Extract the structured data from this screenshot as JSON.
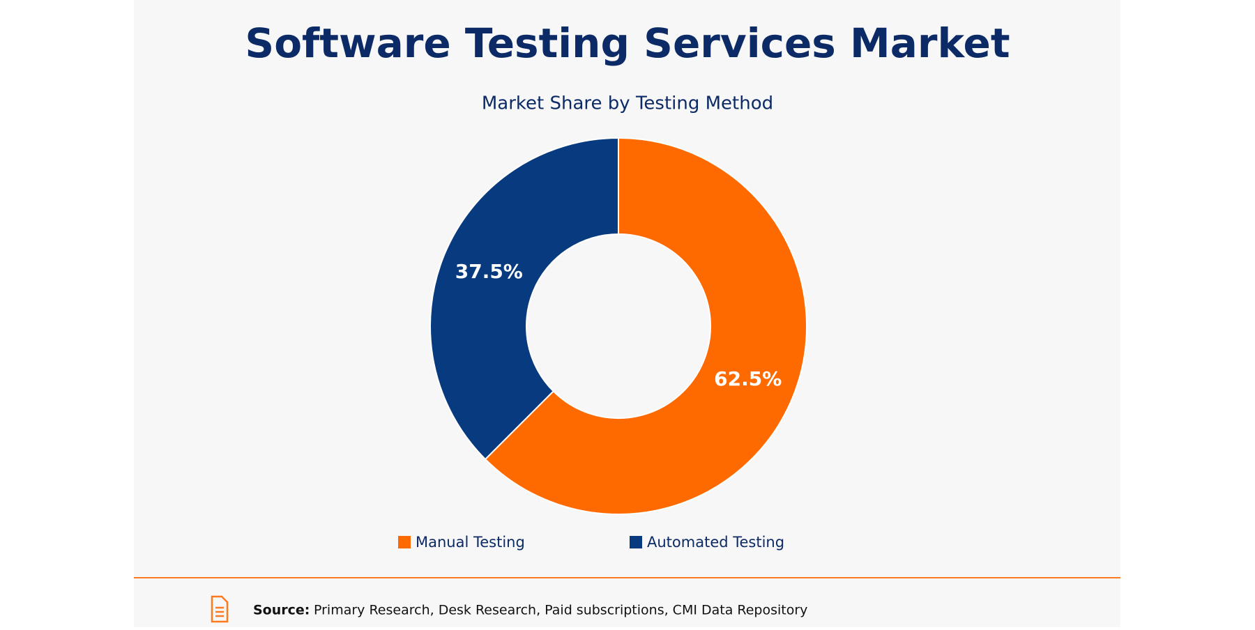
{
  "chart_data": {
    "type": "pie",
    "hole": true,
    "title": "Software Testing Services Market",
    "subtitle": "Market Share by Testing Method",
    "categories": [
      "Manual Testing",
      "Automated Testing"
    ],
    "values": [
      62.5,
      37.5
    ],
    "value_labels": [
      "62.5%",
      "37.5%"
    ],
    "colors": [
      "#ff6a00",
      "#073a7e"
    ]
  },
  "footer": {
    "label": "Source:",
    "text": "Primary Research, Desk Research, Paid subscriptions, CMI Data Repository"
  }
}
